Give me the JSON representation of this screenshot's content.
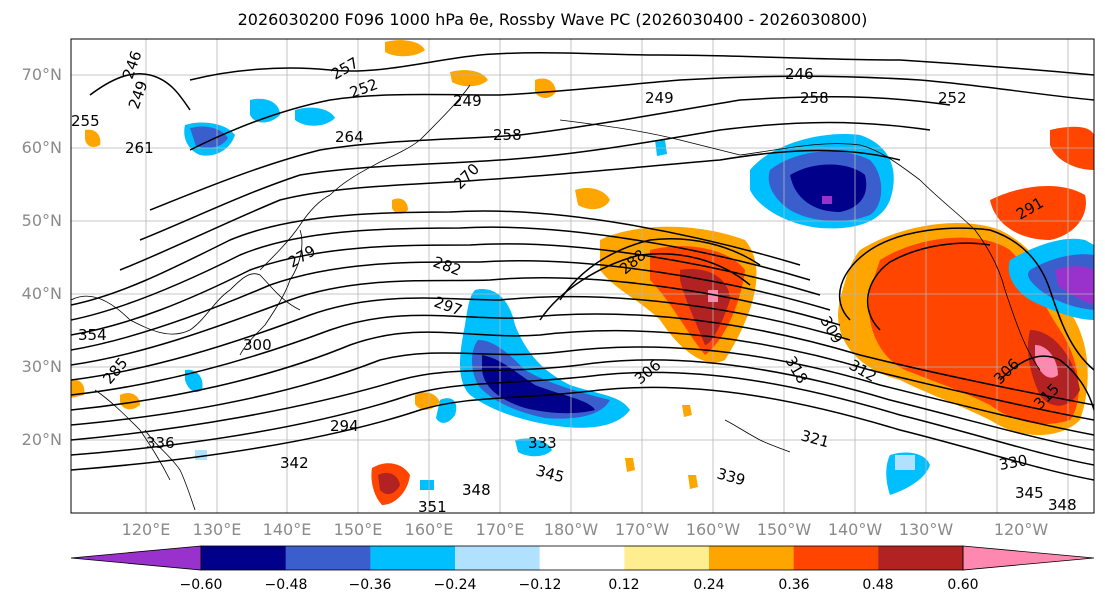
{
  "title": "2026030200 F096 1000 hPa θe, Rossby Wave PC (2026030400 - 2026030800)",
  "map": {
    "lat_labels": [
      "70°N",
      "60°N",
      "50°N",
      "40°N",
      "30°N",
      "20°N"
    ],
    "lon_labels": [
      "120°E",
      "130°E",
      "140°E",
      "150°E",
      "160°E",
      "170°E",
      "180°W",
      "170°W",
      "160°W",
      "150°W",
      "140°W",
      "130°W",
      "120°W"
    ],
    "contour_labels": [
      "246",
      "249",
      "255",
      "261",
      "264",
      "252",
      "257",
      "249",
      "249",
      "246",
      "258",
      "252",
      "258",
      "270",
      "279",
      "282",
      "288",
      "297",
      "300",
      "306",
      "309",
      "312",
      "315",
      "306",
      "318",
      "321",
      "330",
      "333",
      "336",
      "339",
      "342",
      "345",
      "345",
      "348",
      "348",
      "351",
      "354",
      "285",
      "291",
      "294"
    ],
    "colors": {
      "ocean_bg": "#ffffff",
      "contour": "#000000",
      "label": "#8a8a8a"
    }
  },
  "colorbar": {
    "tick_labels": [
      "−0.60",
      "−0.48",
      "−0.36",
      "−0.24",
      "−0.12",
      "0.12",
      "0.24",
      "0.36",
      "0.48",
      "0.60"
    ],
    "colors": [
      "#9932cc",
      "#00008b",
      "#3a5fcd",
      "#00bfff",
      "#b0e2ff",
      "#ffffff",
      "#ffee90",
      "#ffa500",
      "#ff4500",
      "#b22222",
      "#ff88b0"
    ]
  }
}
